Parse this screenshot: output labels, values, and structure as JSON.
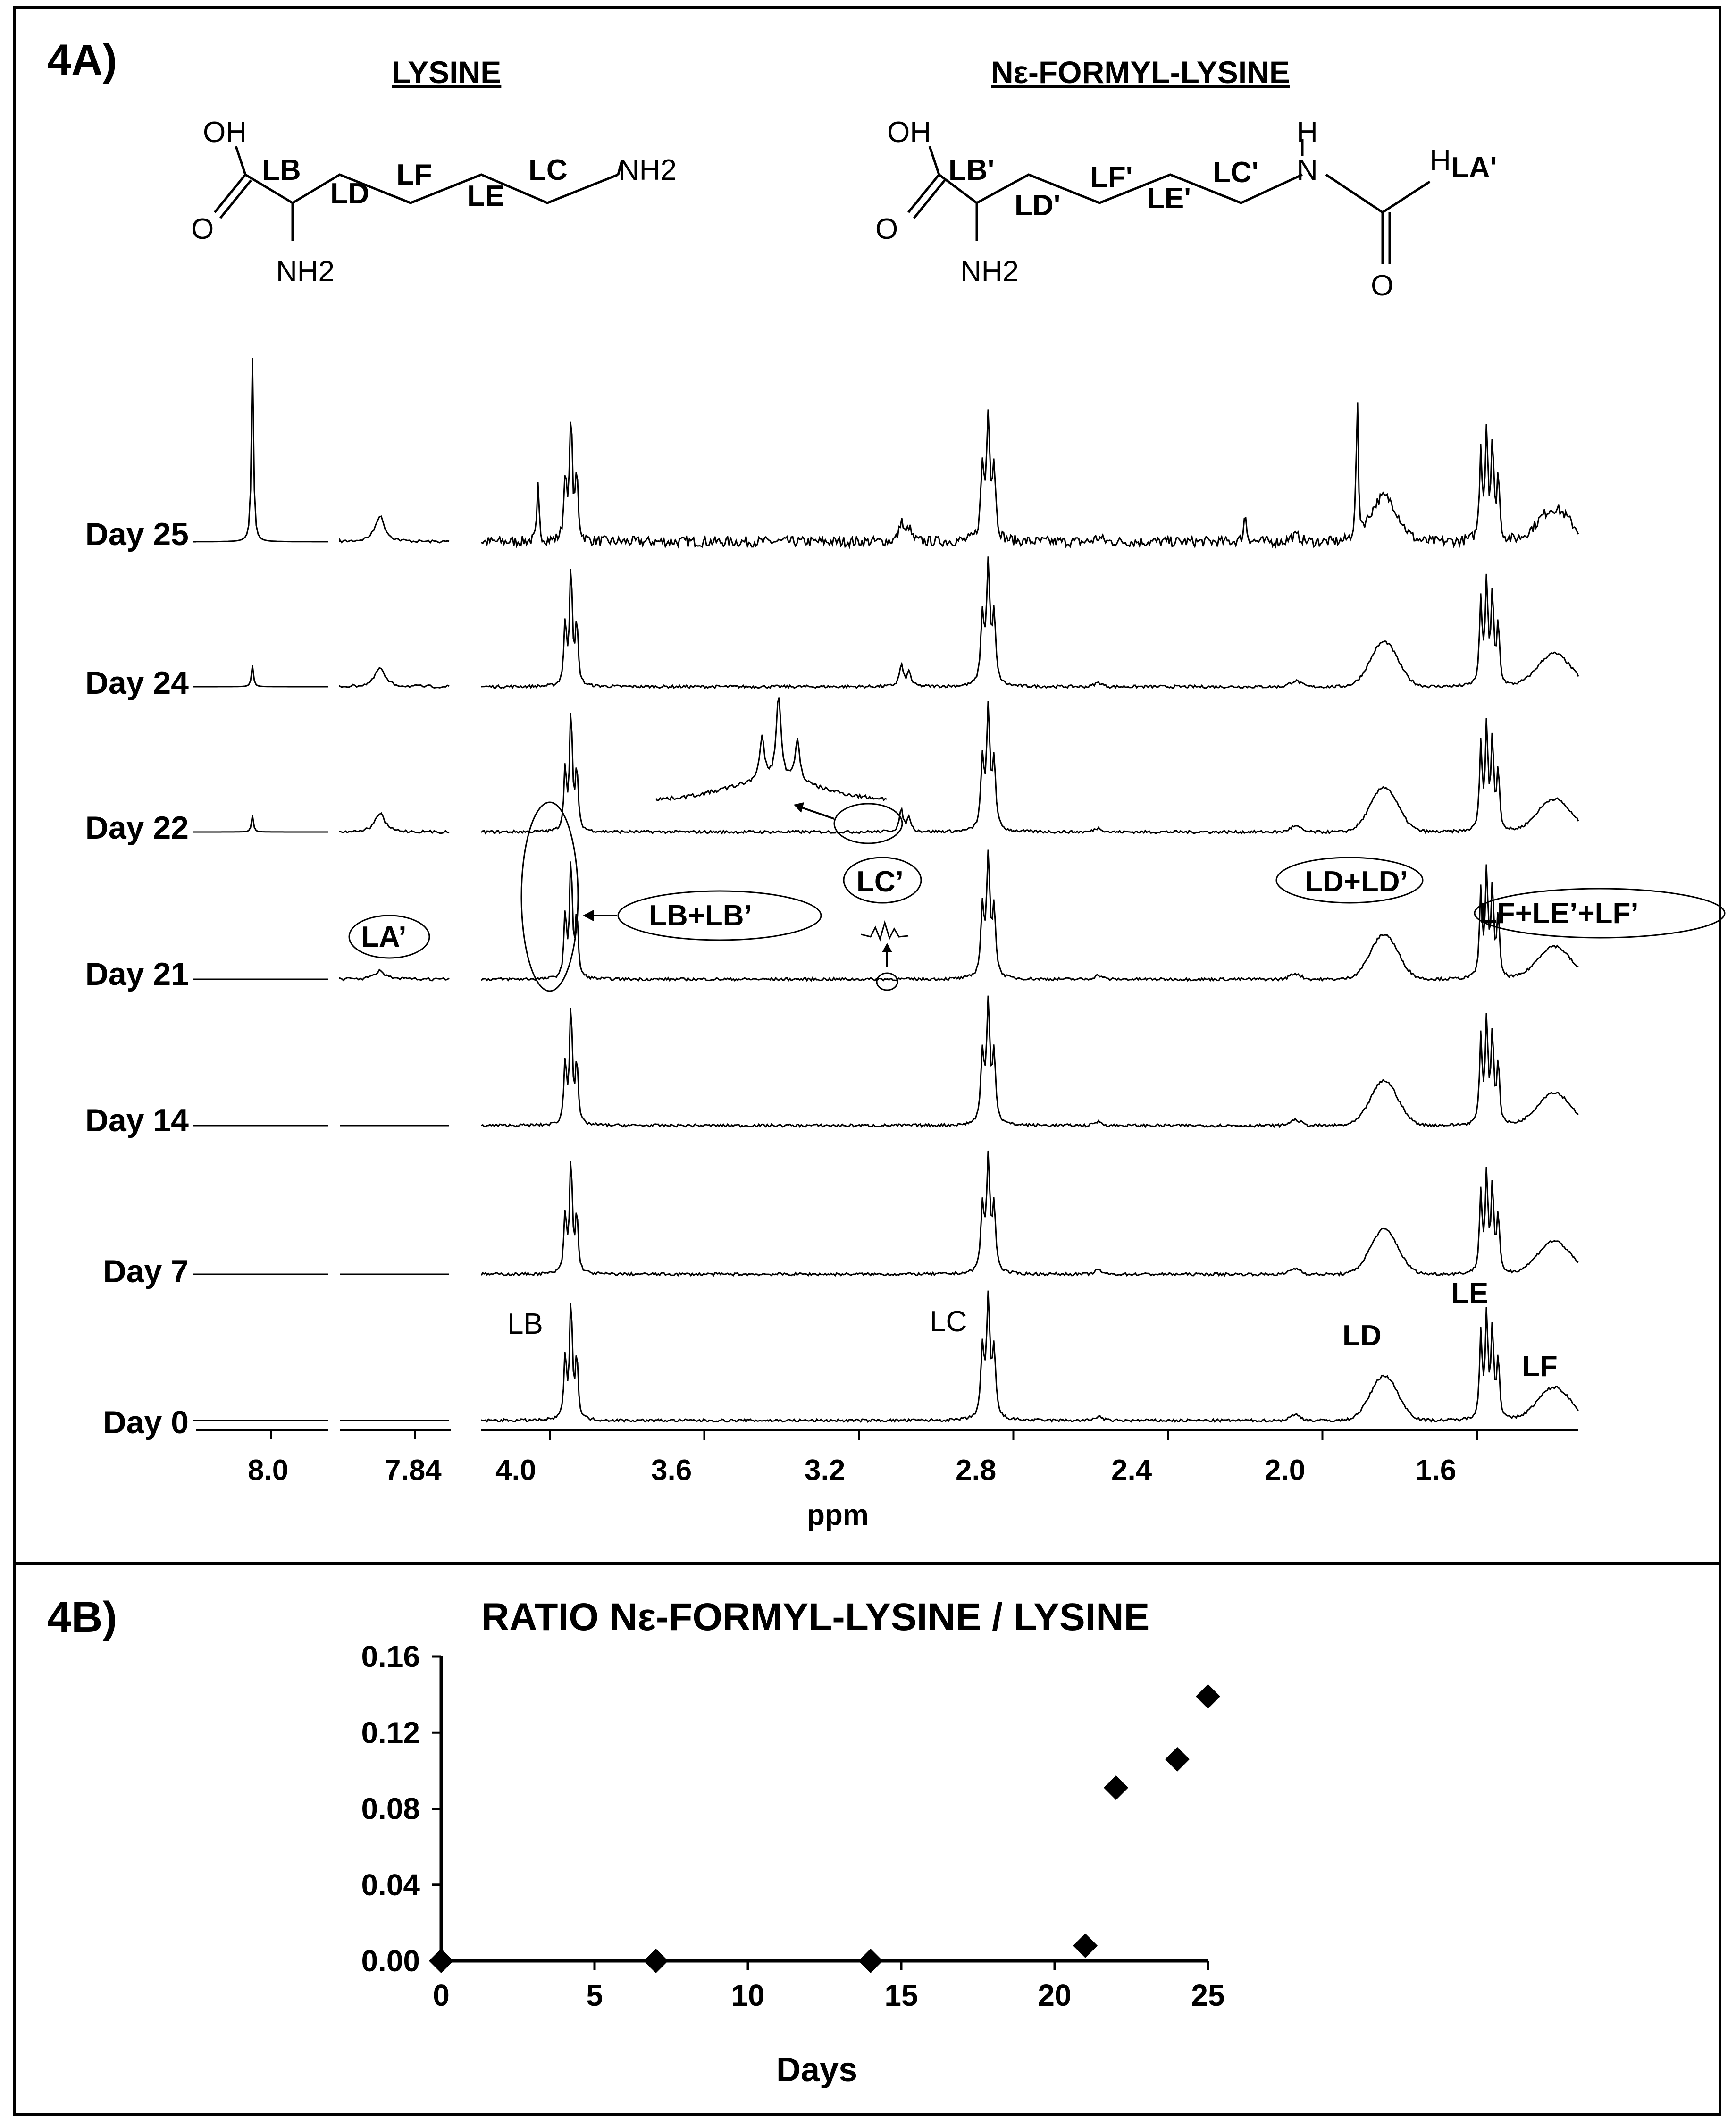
{
  "panel_a": {
    "label": "4A)",
    "structure_left": {
      "title": "LYSINE",
      "atoms": [
        "OH",
        "O",
        "NH2",
        "NH2"
      ],
      "positions": [
        "LB",
        "LD",
        "LF",
        "LE",
        "LC"
      ]
    },
    "structure_right": {
      "title": "Nε-FORMYL-LYSINE",
      "atoms": [
        "OH",
        "O",
        "NH2",
        "H",
        "N",
        "H",
        "O"
      ],
      "positions": [
        "LB'",
        "LD'",
        "LF'",
        "LE'",
        "LC'",
        "LA'"
      ]
    },
    "day_labels": [
      "Day 25",
      "Day 24",
      "Day 22",
      "Day 21",
      "Day 14",
      "Day 7",
      "Day 0"
    ],
    "peak_labels": {
      "LB": "LB",
      "LC": "LC",
      "LD": "LD",
      "LE": "LE",
      "LF": "LF"
    },
    "annotations": {
      "LA_prime": "LA’",
      "LB_LB_prime": "LB+LB’",
      "LC_prime": "LC’",
      "LD_LD_prime": "LD+LD’",
      "LF_LE_LF_prime": "LF+LE’+LF’"
    },
    "xaxis_ticks": [
      "8.0",
      "7.84",
      "4.0",
      "3.6",
      "3.2",
      "2.8",
      "2.4",
      "2.0",
      "1.6"
    ],
    "xaxis_label": "ppm"
  },
  "chart_data": {
    "type": "scatter",
    "title": "RATIO Nε-FORMYL-LYSINE / LYSINE",
    "xlabel": "Days",
    "ylabel": "",
    "x": [
      0,
      7,
      14,
      21,
      22,
      24,
      25
    ],
    "y": [
      0.0,
      0.0,
      0.0,
      0.008,
      0.091,
      0.106,
      0.139
    ],
    "xlim": [
      0,
      25
    ],
    "ylim": [
      0,
      0.16
    ],
    "xticks": [
      "0",
      "5",
      "10",
      "15",
      "20",
      "25"
    ],
    "yticks": [
      "0.00",
      "0.04",
      "0.08",
      "0.12",
      "0.16"
    ],
    "marker": "diamond",
    "color": "#000000",
    "grid": false,
    "panel_label": "4B)"
  }
}
